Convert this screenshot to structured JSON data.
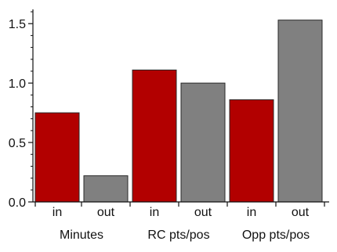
{
  "chart_data": {
    "type": "bar",
    "title": "",
    "xlabel": "",
    "ylabel": "",
    "ylim": [
      0,
      1.62
    ],
    "yticks": [
      0.0,
      0.5,
      1.0,
      1.5
    ],
    "ytick_labels": [
      "0.0",
      "0.5",
      "1.0",
      "1.5"
    ],
    "grid": false,
    "legend": "none",
    "categories": [
      "in",
      "out",
      "in",
      "out",
      "in",
      "out"
    ],
    "groups": [
      "Minutes",
      "RC pts/pos",
      "Opp pts/pos"
    ],
    "values": [
      0.75,
      0.22,
      1.11,
      1.0,
      0.86,
      1.53
    ],
    "colors": {
      "in": "#b20000",
      "out": "#808080",
      "edge": "#2a2a2a",
      "axis": "#111111",
      "text": "#111111"
    }
  }
}
